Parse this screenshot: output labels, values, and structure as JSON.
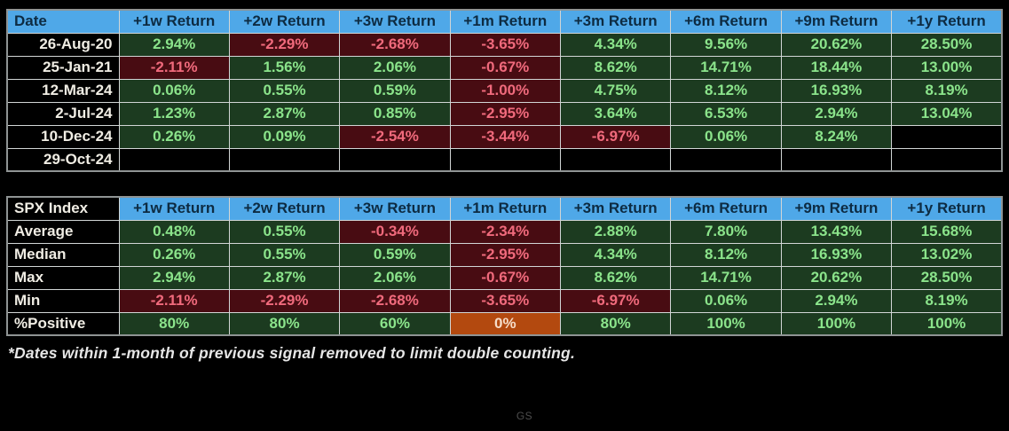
{
  "page": {
    "footnote": "*Dates within 1-month of previous signal removed to limit double counting.",
    "watermark": "GS"
  },
  "colors": {
    "header_bg": "#4FA8E8",
    "header_text": "#0D2B42",
    "label_text": "#F0EDE4",
    "positive_bg": "#1C3B20",
    "positive_text": "#8BE48B",
    "negative_bg": "#480C12",
    "negative_text": "#F06A7C",
    "zero_bg": "#B3490F",
    "zero_text": "#F6DCC8",
    "grid": "#D2D6D6",
    "frame": "#8F9494",
    "footnote_text": "#E6E6E6",
    "watermark_text": "#4D4D4D"
  },
  "chart_data": [
    {
      "type": "table",
      "name": "signal-date-returns",
      "header": [
        "Date",
        "+1w Return",
        "+2w Return",
        "+3w Return",
        "+1m Return",
        "+3m Return",
        "+6m Return",
        "+9m Return",
        "+1y Return"
      ],
      "rows": [
        [
          "26-Aug-20",
          "2.94%",
          "-2.29%",
          "-2.68%",
          "-3.65%",
          "4.34%",
          "9.56%",
          "20.62%",
          "28.50%"
        ],
        [
          "25-Jan-21",
          "-2.11%",
          "1.56%",
          "2.06%",
          "-0.67%",
          "8.62%",
          "14.71%",
          "18.44%",
          "13.00%"
        ],
        [
          "12-Mar-24",
          "0.06%",
          "0.55%",
          "0.59%",
          "-1.00%",
          "4.75%",
          "8.12%",
          "16.93%",
          "8.19%"
        ],
        [
          "2-Jul-24",
          "1.23%",
          "2.87%",
          "0.85%",
          "-2.95%",
          "3.64%",
          "6.53%",
          "2.94%",
          "13.04%"
        ],
        [
          "10-Dec-24",
          "0.26%",
          "0.09%",
          "-2.54%",
          "-3.44%",
          "-6.97%",
          "0.06%",
          "8.24%",
          ""
        ],
        [
          "29-Oct-24",
          "",
          "",
          "",
          "",
          "",
          "",
          "",
          ""
        ]
      ],
      "label_align": "right",
      "label_header_style": "blue",
      "color_coding": "green = positive return, dark red = negative return, black = no data yet"
    },
    {
      "type": "table",
      "name": "spx-summary-stats",
      "header": [
        "SPX Index",
        "+1w Return",
        "+2w Return",
        "+3w Return",
        "+1m Return",
        "+3m Return",
        "+6m Return",
        "+9m Return",
        "+1y Return"
      ],
      "rows": [
        [
          "Average",
          "0.48%",
          "0.55%",
          "-0.34%",
          "-2.34%",
          "2.88%",
          "7.80%",
          "13.43%",
          "15.68%"
        ],
        [
          "Median",
          "0.26%",
          "0.55%",
          "0.59%",
          "-2.95%",
          "4.34%",
          "8.12%",
          "16.93%",
          "13.02%"
        ],
        [
          "Max",
          "2.94%",
          "2.87%",
          "2.06%",
          "-0.67%",
          "8.62%",
          "14.71%",
          "20.62%",
          "28.50%"
        ],
        [
          "Min",
          "-2.11%",
          "-2.29%",
          "-2.68%",
          "-3.65%",
          "-6.97%",
          "0.06%",
          "2.94%",
          "8.19%"
        ],
        [
          "%Positive",
          "80%",
          "80%",
          "60%",
          "0%",
          "80%",
          "100%",
          "100%",
          "100%"
        ]
      ],
      "label_align": "left",
      "label_header_style": "black",
      "color_coding": "green = positive, dark red = negative, orange = 0%"
    }
  ]
}
